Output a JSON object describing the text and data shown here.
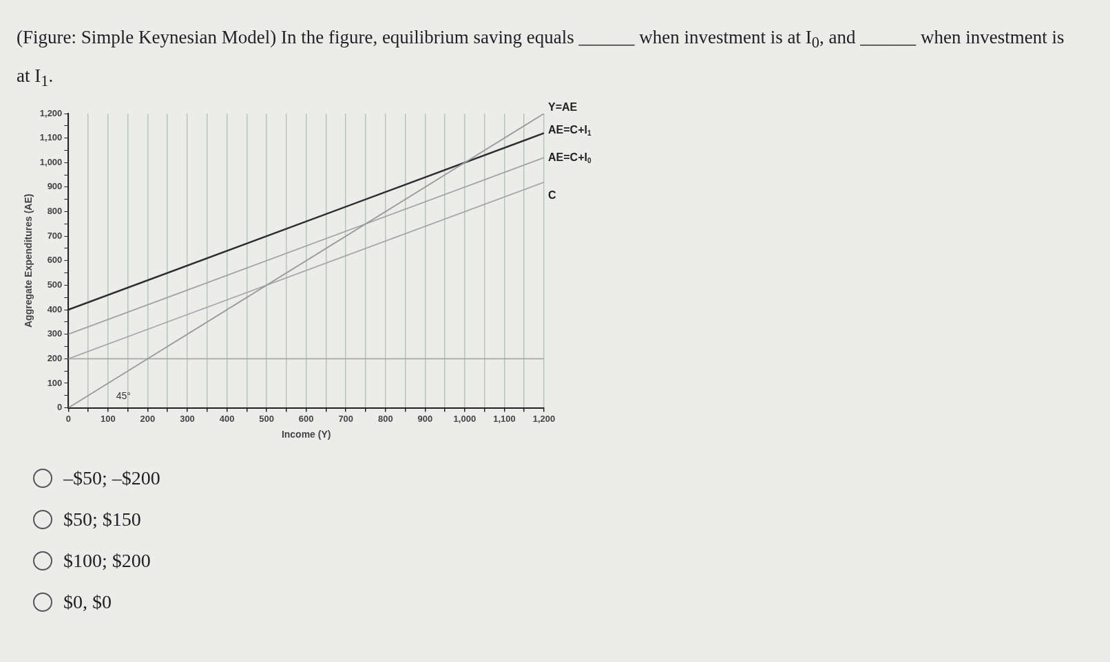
{
  "chart_data": {
    "type": "line",
    "title": "(Figure: Simple Keynesian Model) In the figure, equilibrium saving equals ______ when investment is at I$_{0}$, and ______ when investment is at I$_{1}$.",
    "xlabel": "Income (Y)",
    "ylabel": "Aggregate Expenditures (AE)",
    "series": [
      {
        "name": "Y=AE",
        "color": "#9a9a9a",
        "values": [
          0,
          1200
        ]
      },
      {
        "name": "AE=C+I$_{1}$",
        "color": "#2e2e2e",
        "values": [
          400,
          1120
        ]
      },
      {
        "name": "AE=C+I$_{0}$",
        "color": "#a2a2a2",
        "values": [
          300,
          1020
        ]
      },
      {
        "name": "C",
        "color": "#a8a8a8",
        "values": [
          200,
          920
        ]
      },
      {
        "color": "#a8a8a8",
        "values": [
          200,
          200
        ]
      }
    ],
    "x": [
      0,
      1200
    ],
    "xlim": [
      0,
      1200
    ],
    "ylim": [
      0,
      1200
    ],
    "xticks": [
      0,
      {
        "value": 50,
        "label": null
      },
      100,
      {
        "value": 150,
        "label": null
      },
      200,
      {
        "value": 250,
        "label": null
      },
      300,
      {
        "value": 350,
        "label": null
      },
      400,
      {
        "value": 450,
        "label": null
      },
      500,
      {
        "value": 550,
        "label": null
      },
      600,
      {
        "value": 650,
        "label": null
      },
      700,
      {
        "value": 750,
        "label": null
      },
      800,
      {
        "value": 850,
        "label": null
      },
      900,
      {
        "value": 950,
        "label": null
      },
      {
        "value": 1000,
        "label": "1,000"
      },
      {
        "value": 1050,
        "label": null
      },
      {
        "value": 1100,
        "label": "1,100"
      },
      {
        "value": 1150,
        "label": null
      },
      {
        "value": 1200,
        "label": "1,200"
      }
    ],
    "yticks": [
      0,
      {
        "value": 50,
        "label": null
      },
      100,
      {
        "value": 150,
        "label": null
      },
      200,
      {
        "value": 250,
        "label": null
      },
      300,
      {
        "value": 350,
        "label": null
      },
      400,
      {
        "value": 450,
        "label": null
      },
      500,
      {
        "value": 550,
        "label": null
      },
      600,
      {
        "value": 650,
        "label": null
      },
      700,
      {
        "value": 750,
        "label": null
      },
      800,
      {
        "value": 850,
        "label": null
      },
      900,
      {
        "value": 950,
        "label": null
      },
      {
        "value": 1000,
        "label": "1,000"
      },
      {
        "value": 1050,
        "label": null
      },
      {
        "value": 1100,
        "label": "1,100"
      },
      {
        "value": 1150,
        "label": null
      },
      {
        "value": 1200,
        "label": "1,200"
      }
    ],
    "grid": "x",
    "legend": false,
    "marker": "none",
    "line_style": "solid",
    "annotations": [
      "45°",
      "–$50; –$200",
      "$50; $150",
      "$100; $200",
      "$0, $0"
    ]
  }
}
